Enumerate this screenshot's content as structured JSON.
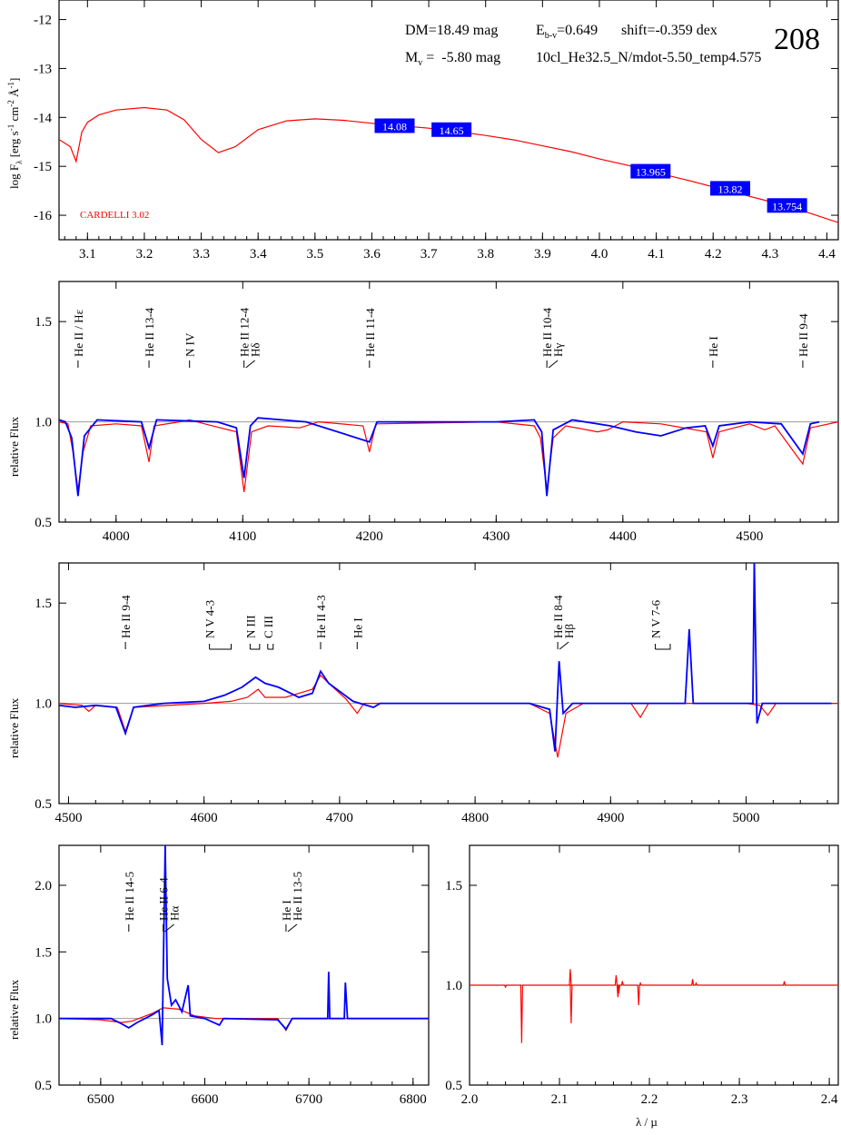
{
  "header": {
    "dm": "DM=18.49 mag",
    "ebv_prefix": "E",
    "ebv_sub": "b-v",
    "ebv_value": "=0.649",
    "shift": "shift=-0.359 dex",
    "mv_prefix": "M",
    "mv_sub": "v",
    "mv_value": " =  -5.80 mag",
    "model": "10cl_He32.5_N/mdot-5.50_temp4.575",
    "id": "208"
  },
  "colors": {
    "model": "#ff0000",
    "observed": "#0000ff",
    "box": "#0000ff",
    "continuum": "#999999"
  },
  "chart_data": [
    {
      "type": "line",
      "panel": "sed",
      "ylabel": "log F_λ [erg s^-1 cm^-2 Å^-1]",
      "ylabel_parts": {
        "a": "log F",
        "b": "λ",
        "c": " [erg s",
        "d": "-1",
        "e": " cm",
        "f": "-2",
        "g": " Å",
        "h": "-1",
        "i": "]"
      },
      "xlim": [
        3.05,
        4.42
      ],
      "ylim": [
        -16.5,
        -11.6
      ],
      "xticks": [
        "3.1",
        "3.2",
        "3.3",
        "3.4",
        "3.5",
        "3.6",
        "3.7",
        "3.8",
        "3.9",
        "4.0",
        "4.1",
        "4.2",
        "4.3",
        "4.4"
      ],
      "yticks": [
        "-12",
        "-13",
        "-14",
        "-15",
        "-16"
      ],
      "annotation": "CARDELLI 3.02",
      "photometry": [
        {
          "x": 3.64,
          "y": -14.17,
          "label": "14.08"
        },
        {
          "x": 3.74,
          "y": -14.25,
          "label": "14.65"
        },
        {
          "x": 4.09,
          "y": -15.1,
          "label": "13.965"
        },
        {
          "x": 4.23,
          "y": -15.45,
          "label": "13.82"
        },
        {
          "x": 4.33,
          "y": -15.8,
          "label": "13.754"
        }
      ],
      "model_sed": [
        [
          3.05,
          -14.45
        ],
        [
          3.07,
          -14.6
        ],
        [
          3.08,
          -14.9
        ],
        [
          3.09,
          -14.3
        ],
        [
          3.1,
          -14.1
        ],
        [
          3.12,
          -13.95
        ],
        [
          3.15,
          -13.85
        ],
        [
          3.2,
          -13.8
        ],
        [
          3.24,
          -13.85
        ],
        [
          3.27,
          -14.05
        ],
        [
          3.3,
          -14.45
        ],
        [
          3.33,
          -14.72
        ],
        [
          3.36,
          -14.6
        ],
        [
          3.4,
          -14.25
        ],
        [
          3.45,
          -14.07
        ],
        [
          3.5,
          -14.03
        ],
        [
          3.55,
          -14.06
        ],
        [
          3.6,
          -14.12
        ],
        [
          3.65,
          -14.17
        ],
        [
          3.7,
          -14.22
        ],
        [
          3.75,
          -14.29
        ],
        [
          3.8,
          -14.37
        ],
        [
          3.85,
          -14.46
        ],
        [
          3.9,
          -14.58
        ],
        [
          3.95,
          -14.7
        ],
        [
          4.0,
          -14.85
        ],
        [
          4.05,
          -14.98
        ],
        [
          4.1,
          -15.13
        ],
        [
          4.15,
          -15.27
        ],
        [
          4.2,
          -15.42
        ],
        [
          4.25,
          -15.57
        ],
        [
          4.3,
          -15.72
        ],
        [
          4.35,
          -15.88
        ],
        [
          4.42,
          -16.15
        ]
      ]
    },
    {
      "type": "line",
      "panel": "blue",
      "ylabel": "relative Flux",
      "xlim": [
        3955,
        4570
      ],
      "ylim": [
        0.5,
        1.7
      ],
      "xticks": [
        "4000",
        "4100",
        "4200",
        "4300",
        "4400",
        "4500"
      ],
      "yticks": [
        "0.5",
        "1.0",
        "1.5"
      ],
      "lines": [
        {
          "x": 3970,
          "label": "He II / Hε",
          "style": "single"
        },
        {
          "x": 4026,
          "label": "He II 13-4",
          "style": "single"
        },
        {
          "x": 4058,
          "label": "N IV",
          "style": "single"
        },
        {
          "x": 4101,
          "label": "He II 12-4",
          "label2": "Hδ",
          "style": "pair"
        },
        {
          "x": 4200,
          "label": "He II 11-4",
          "style": "single"
        },
        {
          "x": 4340,
          "label": "He II 10-4",
          "label2": "Hγ",
          "style": "pair"
        },
        {
          "x": 4471,
          "label": "He I",
          "style": "single"
        },
        {
          "x": 4542,
          "label": "He II 9-4",
          "style": "single"
        }
      ],
      "model": [
        [
          3955,
          1.0
        ],
        [
          3962,
          0.99
        ],
        [
          3966,
          0.85
        ],
        [
          3970,
          0.66
        ],
        [
          3974,
          0.85
        ],
        [
          3980,
          0.98
        ],
        [
          4000,
          0.99
        ],
        [
          4020,
          0.98
        ],
        [
          4026,
          0.8
        ],
        [
          4030,
          0.98
        ],
        [
          4050,
          1.0
        ],
        [
          4058,
          1.01
        ],
        [
          4070,
          0.99
        ],
        [
          4095,
          0.95
        ],
        [
          4101,
          0.65
        ],
        [
          4107,
          0.95
        ],
        [
          4120,
          0.98
        ],
        [
          4145,
          0.97
        ],
        [
          4160,
          1.0
        ],
        [
          4195,
          0.98
        ],
        [
          4200,
          0.85
        ],
        [
          4205,
          0.99
        ],
        [
          4300,
          1.0
        ],
        [
          4330,
          0.98
        ],
        [
          4335,
          0.92
        ],
        [
          4340,
          0.66
        ],
        [
          4345,
          0.92
        ],
        [
          4355,
          0.98
        ],
        [
          4380,
          0.95
        ],
        [
          4388,
          0.96
        ],
        [
          4400,
          1.0
        ],
        [
          4430,
          0.99
        ],
        [
          4466,
          0.95
        ],
        [
          4471,
          0.82
        ],
        [
          4476,
          0.95
        ],
        [
          4500,
          0.99
        ],
        [
          4512,
          0.96
        ],
        [
          4520,
          0.98
        ],
        [
          4542,
          0.79
        ],
        [
          4548,
          0.97
        ],
        [
          4570,
          1.0
        ]
      ],
      "observed": [
        [
          3955,
          1.01
        ],
        [
          3960,
          1.0
        ],
        [
          3965,
          0.92
        ],
        [
          3970,
          0.63
        ],
        [
          3975,
          0.93
        ],
        [
          3985,
          1.01
        ],
        [
          4020,
          1.0
        ],
        [
          4026,
          0.87
        ],
        [
          4032,
          1.01
        ],
        [
          4080,
          1.0
        ],
        [
          4095,
          0.97
        ],
        [
          4101,
          0.72
        ],
        [
          4106,
          0.98
        ],
        [
          4112,
          1.02
        ],
        [
          4150,
          1.0
        ],
        [
          4200,
          0.9
        ],
        [
          4206,
          1.0
        ],
        [
          4300,
          1.0
        ],
        [
          4330,
          1.01
        ],
        [
          4336,
          0.95
        ],
        [
          4340,
          0.63
        ],
        [
          4345,
          0.96
        ],
        [
          4360,
          1.01
        ],
        [
          4390,
          0.98
        ],
        [
          4410,
          0.95
        ],
        [
          4430,
          0.93
        ],
        [
          4450,
          0.97
        ],
        [
          4465,
          0.98
        ],
        [
          4471,
          0.88
        ],
        [
          4476,
          0.98
        ],
        [
          4500,
          1.0
        ],
        [
          4525,
          0.99
        ],
        [
          4542,
          0.84
        ],
        [
          4548,
          0.99
        ],
        [
          4555,
          1.0
        ]
      ]
    },
    {
      "type": "line",
      "panel": "green",
      "ylabel": "relative Flux",
      "xlim": [
        4493,
        5068
      ],
      "ylim": [
        0.5,
        1.7
      ],
      "xticks": [
        "4500",
        "4600",
        "4700",
        "4800",
        "4900",
        "5000"
      ],
      "yticks": [
        "0.5",
        "1.0",
        "1.5"
      ],
      "lines": [
        {
          "x": 4542,
          "label": "He II 9-4",
          "style": "single"
        },
        {
          "x": 4604,
          "label": "N V 4-3",
          "style": "bracket",
          "x2": 4620
        },
        {
          "x": 4634,
          "label": "N III",
          "style": "bracket",
          "x2": 4641
        },
        {
          "x": 4647,
          "label": "C III",
          "style": "bracket",
          "x2": 4651
        },
        {
          "x": 4686,
          "label": "He II 4-3",
          "style": "single"
        },
        {
          "x": 4713,
          "label": "He I",
          "style": "single"
        },
        {
          "x": 4861,
          "label": "He II 8-4",
          "label2": "Hβ",
          "style": "pair"
        },
        {
          "x": 4933,
          "label": "N V 7-6",
          "style": "bracket",
          "x2": 4944
        }
      ],
      "model": [
        [
          4493,
          1.0
        ],
        [
          4510,
          0.99
        ],
        [
          4515,
          0.96
        ],
        [
          4520,
          0.99
        ],
        [
          4536,
          0.98
        ],
        [
          4542,
          0.86
        ],
        [
          4548,
          0.98
        ],
        [
          4600,
          1.0
        ],
        [
          4620,
          1.01
        ],
        [
          4632,
          1.03
        ],
        [
          4640,
          1.07
        ],
        [
          4645,
          1.03
        ],
        [
          4660,
          1.03
        ],
        [
          4680,
          1.07
        ],
        [
          4686,
          1.14
        ],
        [
          4692,
          1.1
        ],
        [
          4705,
          1.02
        ],
        [
          4713,
          0.95
        ],
        [
          4718,
          1.0
        ],
        [
          4840,
          1.0
        ],
        [
          4855,
          0.95
        ],
        [
          4861,
          0.73
        ],
        [
          4867,
          0.95
        ],
        [
          4880,
          1.0
        ],
        [
          4915,
          1.0
        ],
        [
          4922,
          0.93
        ],
        [
          4928,
          1.0
        ],
        [
          5000,
          1.0
        ],
        [
          5010,
          0.99
        ],
        [
          5016,
          0.94
        ],
        [
          5022,
          1.0
        ],
        [
          5068,
          1.0
        ]
      ],
      "observed": [
        [
          4493,
          0.99
        ],
        [
          4505,
          0.98
        ],
        [
          4520,
          0.99
        ],
        [
          4535,
          0.98
        ],
        [
          4542,
          0.85
        ],
        [
          4548,
          0.98
        ],
        [
          4570,
          1.0
        ],
        [
          4600,
          1.01
        ],
        [
          4615,
          1.04
        ],
        [
          4628,
          1.08
        ],
        [
          4638,
          1.13
        ],
        [
          4645,
          1.1
        ],
        [
          4655,
          1.08
        ],
        [
          4670,
          1.03
        ],
        [
          4680,
          1.05
        ],
        [
          4686,
          1.16
        ],
        [
          4692,
          1.1
        ],
        [
          4710,
          1.01
        ],
        [
          4725,
          0.98
        ],
        [
          4730,
          1.0
        ],
        [
          4840,
          1.0
        ],
        [
          4855,
          0.97
        ],
        [
          4859,
          0.76
        ],
        [
          4862,
          1.21
        ],
        [
          4865,
          0.95
        ],
        [
          4872,
          1.0
        ],
        [
          4955,
          1.0
        ],
        [
          4958,
          1.37
        ],
        [
          4961,
          1.0
        ],
        [
          5005,
          1.0
        ],
        [
          5006,
          1.71
        ],
        [
          5008,
          0.9
        ],
        [
          5012,
          1.0
        ],
        [
          5040,
          1.0
        ],
        [
          5063,
          1.0
        ]
      ]
    },
    {
      "type": "line",
      "panel": "red",
      "ylabel": "relative Flux",
      "xlim": [
        6460,
        6815
      ],
      "ylim": [
        0.5,
        2.3
      ],
      "xticks": [
        "6500",
        "6600",
        "6700",
        "6800"
      ],
      "yticks": [
        "0.5",
        "1.0",
        "1.5",
        "2.0"
      ],
      "lines": [
        {
          "x": 6527,
          "label": "He II 14-5",
          "style": "single"
        },
        {
          "x": 6560,
          "label": "He II 6-4",
          "label2": "Hα",
          "style": "pair"
        },
        {
          "x": 6678,
          "label": "He I",
          "label2": "He II 13-5",
          "style": "pair"
        }
      ],
      "model": [
        [
          6460,
          1.0
        ],
        [
          6500,
          0.99
        ],
        [
          6520,
          0.97
        ],
        [
          6530,
          0.98
        ],
        [
          6550,
          1.04
        ],
        [
          6560,
          1.08
        ],
        [
          6575,
          1.07
        ],
        [
          6590,
          1.02
        ],
        [
          6610,
          1.0
        ],
        [
          6670,
          1.0
        ],
        [
          6678,
          0.91
        ],
        [
          6684,
          1.0
        ],
        [
          6720,
          1.0
        ],
        [
          6815,
          1.0
        ]
      ],
      "observed": [
        [
          6460,
          1.0
        ],
        [
          6510,
          1.0
        ],
        [
          6520,
          0.96
        ],
        [
          6527,
          0.93
        ],
        [
          6535,
          0.97
        ],
        [
          6550,
          1.03
        ],
        [
          6556,
          1.06
        ],
        [
          6559,
          0.8
        ],
        [
          6562,
          2.3
        ],
        [
          6564,
          1.3
        ],
        [
          6568,
          1.1
        ],
        [
          6572,
          1.14
        ],
        [
          6578,
          1.05
        ],
        [
          6584,
          1.25
        ],
        [
          6586,
          1.02
        ],
        [
          6600,
          1.0
        ],
        [
          6614,
          0.95
        ],
        [
          6618,
          1.0
        ],
        [
          6670,
          0.99
        ],
        [
          6678,
          0.92
        ],
        [
          6684,
          1.0
        ],
        [
          6718,
          1.0
        ],
        [
          6719,
          1.35
        ],
        [
          6720,
          1.0
        ],
        [
          6734,
          1.0
        ],
        [
          6735,
          1.27
        ],
        [
          6737,
          1.0
        ],
        [
          6815,
          1.0
        ]
      ]
    },
    {
      "type": "line",
      "panel": "ir",
      "xlabel": "λ / µ",
      "xlim": [
        2.0,
        2.41
      ],
      "ylim": [
        0.5,
        1.7
      ],
      "xticks": [
        "2.0",
        "2.1",
        "2.2",
        "2.3",
        "2.4"
      ],
      "yticks": [
        "0.5",
        "1.0",
        "1.5"
      ],
      "model_spikes": [
        [
          2.04,
          0.99
        ],
        [
          2.058,
          0.71
        ],
        [
          2.112,
          1.08
        ],
        [
          2.113,
          0.81
        ],
        [
          2.163,
          1.05
        ],
        [
          2.165,
          0.94
        ],
        [
          2.166,
          0.96
        ],
        [
          2.17,
          1.02
        ],
        [
          2.188,
          0.9
        ],
        [
          2.19,
          1.01
        ],
        [
          2.248,
          1.03
        ],
        [
          2.252,
          1.01
        ],
        [
          2.35,
          1.02
        ]
      ]
    }
  ]
}
